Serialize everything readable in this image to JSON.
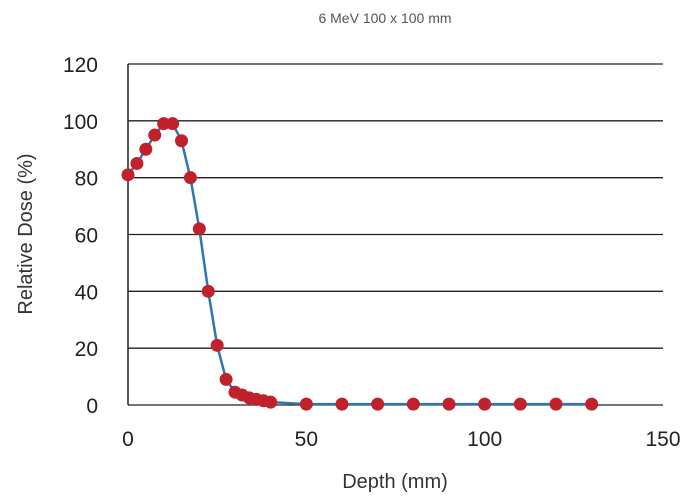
{
  "chart_data": {
    "type": "line",
    "title": "6 MeV 100 x 100 mm",
    "xlabel": "Depth (mm)",
    "ylabel": "Relative Dose (%)",
    "xlim": [
      0,
      150
    ],
    "ylim": [
      0,
      120
    ],
    "xticks": [
      0,
      50,
      100,
      150
    ],
    "yticks": [
      0,
      20,
      40,
      60,
      80,
      100,
      120
    ],
    "grid": "horizontal",
    "line_color": "#2e75b6",
    "marker_color": "#c0212a",
    "series": [
      {
        "x": [
          0,
          2.5,
          5,
          7.5,
          10,
          12.5,
          15,
          17.5,
          20,
          22.5,
          25,
          27.5,
          30,
          32,
          34,
          36,
          38,
          40,
          50,
          60,
          70,
          80,
          90,
          100,
          110,
          120,
          130
        ],
        "y": [
          81,
          85,
          90,
          95,
          99,
          99,
          93,
          80,
          62,
          40,
          21,
          9,
          4.5,
          3.5,
          2.5,
          2,
          1.5,
          1,
          0.3,
          0.3,
          0.3,
          0.3,
          0.3,
          0.3,
          0.3,
          0.3,
          0.3
        ]
      }
    ]
  }
}
